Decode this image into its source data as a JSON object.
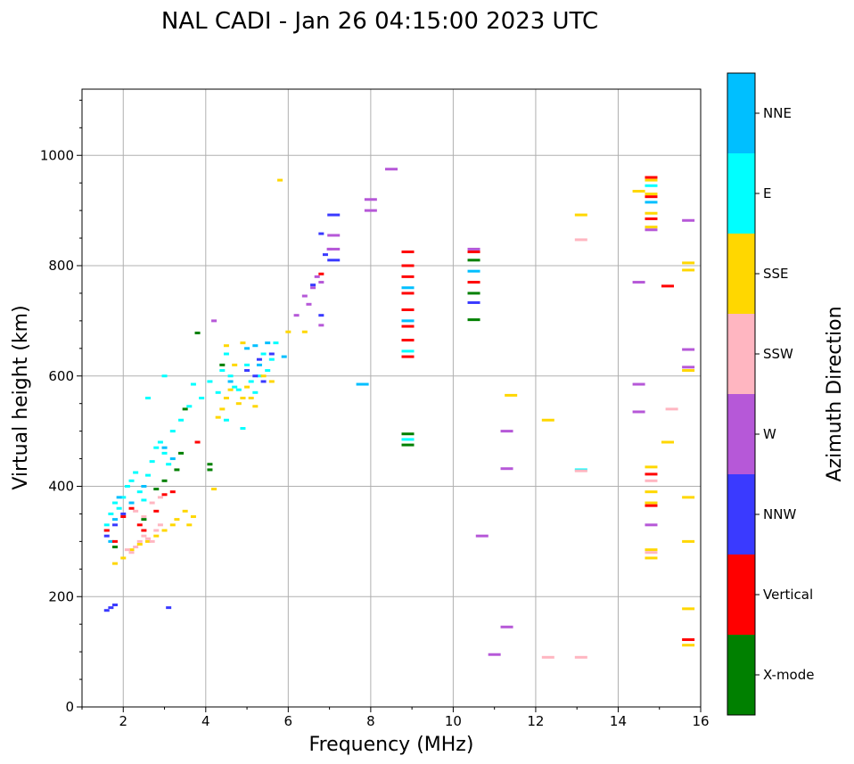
{
  "chart_data": {
    "type": "scatter",
    "title": "NAL CADI - Jan 26 04:15:00 2023 UTC",
    "xlabel": "Frequency (MHz)",
    "ylabel": "Virtual height (km)",
    "xlim": [
      1,
      16
    ],
    "ylim": [
      0,
      1120
    ],
    "xticks": [
      2,
      4,
      6,
      8,
      10,
      12,
      14,
      16
    ],
    "yticks": [
      0,
      200,
      400,
      600,
      800,
      1000
    ],
    "grid": true,
    "colorbar": {
      "label": "Azimuth Direction",
      "position": "right",
      "categories": [
        {
          "name": "X-mode",
          "color": "#008000"
        },
        {
          "name": "Vertical",
          "color": "#ff0000"
        },
        {
          "name": "NNW",
          "color": "#3a3aff"
        },
        {
          "name": "W",
          "color": "#b658d8"
        },
        {
          "name": "SSW",
          "color": "#ffb6c1"
        },
        {
          "name": "SSE",
          "color": "#ffd700"
        },
        {
          "name": "E",
          "color": "#00ffff"
        },
        {
          "name": "NNE",
          "color": "#00bfff"
        }
      ]
    },
    "series": [
      {
        "name": "E",
        "points": [
          [
            1.6,
            330
          ],
          [
            1.7,
            350
          ],
          [
            1.8,
            370
          ],
          [
            1.9,
            360
          ],
          [
            2.0,
            380
          ],
          [
            2.1,
            400
          ],
          [
            2.2,
            410
          ],
          [
            2.3,
            425
          ],
          [
            2.4,
            390
          ],
          [
            2.5,
            375
          ],
          [
            2.6,
            420
          ],
          [
            2.7,
            445
          ],
          [
            2.8,
            470
          ],
          [
            2.9,
            480
          ],
          [
            3.0,
            460
          ],
          [
            3.1,
            440
          ],
          [
            3.2,
            500
          ],
          [
            3.4,
            520
          ],
          [
            3.6,
            545
          ],
          [
            3.7,
            585
          ],
          [
            3.9,
            560
          ],
          [
            4.1,
            590
          ],
          [
            4.3,
            570
          ],
          [
            4.4,
            610
          ],
          [
            4.5,
            640
          ],
          [
            4.6,
            600
          ],
          [
            4.7,
            580
          ],
          [
            4.8,
            575
          ],
          [
            4.9,
            560
          ],
          [
            5.0,
            620
          ],
          [
            5.1,
            590
          ],
          [
            5.2,
            570
          ],
          [
            5.3,
            600
          ],
          [
            5.4,
            640
          ],
          [
            5.5,
            610
          ],
          [
            5.6,
            630
          ],
          [
            5.7,
            660
          ],
          [
            3.0,
            600
          ],
          [
            2.6,
            560
          ],
          [
            8.9,
            645
          ],
          [
            8.9,
            485
          ],
          [
            13.1,
            430
          ],
          [
            14.8,
            945
          ],
          [
            4.5,
            520
          ],
          [
            4.9,
            505
          ]
        ]
      },
      {
        "name": "NNE",
        "points": [
          [
            1.6,
            320
          ],
          [
            1.7,
            300
          ],
          [
            1.8,
            340
          ],
          [
            1.9,
            380
          ],
          [
            2.2,
            370
          ],
          [
            2.5,
            400
          ],
          [
            3.0,
            470
          ],
          [
            3.2,
            450
          ],
          [
            5.0,
            650
          ],
          [
            5.3,
            620
          ],
          [
            5.5,
            660
          ],
          [
            5.9,
            635
          ],
          [
            7.8,
            585
          ],
          [
            8.9,
            760
          ],
          [
            8.9,
            700
          ],
          [
            10.5,
            790
          ],
          [
            14.8,
            915
          ],
          [
            4.6,
            590
          ],
          [
            5.2,
            655
          ]
        ]
      },
      {
        "name": "SSE",
        "points": [
          [
            1.8,
            260
          ],
          [
            2.0,
            270
          ],
          [
            2.2,
            285
          ],
          [
            2.4,
            295
          ],
          [
            2.6,
            300
          ],
          [
            2.8,
            310
          ],
          [
            3.0,
            320
          ],
          [
            3.2,
            330
          ],
          [
            3.3,
            340
          ],
          [
            3.5,
            355
          ],
          [
            3.6,
            330
          ],
          [
            3.7,
            345
          ],
          [
            4.2,
            395
          ],
          [
            4.3,
            525
          ],
          [
            4.4,
            540
          ],
          [
            4.5,
            560
          ],
          [
            4.6,
            575
          ],
          [
            4.8,
            550
          ],
          [
            4.9,
            560
          ],
          [
            5.0,
            580
          ],
          [
            5.1,
            560
          ],
          [
            5.2,
            545
          ],
          [
            5.4,
            600
          ],
          [
            5.6,
            590
          ],
          [
            5.8,
            955
          ],
          [
            6.0,
            680
          ],
          [
            6.4,
            680
          ],
          [
            4.7,
            620
          ],
          [
            4.9,
            660
          ],
          [
            4.5,
            655
          ],
          [
            11.4,
            565
          ],
          [
            12.3,
            520
          ],
          [
            13.1,
            892
          ],
          [
            14.5,
            935
          ],
          [
            14.8,
            955
          ],
          [
            14.8,
            930
          ],
          [
            14.8,
            895
          ],
          [
            14.8,
            870
          ],
          [
            14.8,
            435
          ],
          [
            14.8,
            390
          ],
          [
            14.8,
            370
          ],
          [
            14.8,
            285
          ],
          [
            14.8,
            270
          ],
          [
            15.2,
            480
          ],
          [
            15.7,
            805
          ],
          [
            15.7,
            792
          ],
          [
            15.7,
            610
          ],
          [
            15.7,
            380
          ],
          [
            15.7,
            300
          ],
          [
            15.7,
            178
          ],
          [
            15.7,
            112
          ]
        ]
      },
      {
        "name": "SSW",
        "points": [
          [
            2.1,
            285
          ],
          [
            2.2,
            280
          ],
          [
            2.3,
            290
          ],
          [
            2.4,
            300
          ],
          [
            2.5,
            310
          ],
          [
            2.6,
            305
          ],
          [
            2.7,
            300
          ],
          [
            2.8,
            320
          ],
          [
            2.9,
            330
          ],
          [
            2.3,
            355
          ],
          [
            2.5,
            345
          ],
          [
            2.7,
            370
          ],
          [
            2.9,
            380
          ],
          [
            12.3,
            90
          ],
          [
            13.1,
            90
          ],
          [
            13.1,
            847
          ],
          [
            13.1,
            428
          ],
          [
            14.8,
            410
          ],
          [
            15.3,
            540
          ],
          [
            14.8,
            280
          ]
        ]
      },
      {
        "name": "W",
        "points": [
          [
            4.2,
            700
          ],
          [
            6.2,
            710
          ],
          [
            6.4,
            745
          ],
          [
            6.5,
            730
          ],
          [
            6.6,
            760
          ],
          [
            6.7,
            780
          ],
          [
            6.8,
            770
          ],
          [
            6.8,
            692
          ],
          [
            7.0,
            830
          ],
          [
            7.1,
            855
          ],
          [
            7.1,
            830
          ],
          [
            8.0,
            920
          ],
          [
            8.0,
            900
          ],
          [
            8.5,
            975
          ],
          [
            10.5,
            830
          ],
          [
            10.7,
            310
          ],
          [
            11.0,
            95
          ],
          [
            11.3,
            145
          ],
          [
            11.3,
            500
          ],
          [
            11.3,
            432
          ],
          [
            14.5,
            770
          ],
          [
            14.5,
            585
          ],
          [
            14.5,
            535
          ],
          [
            14.8,
            865
          ],
          [
            14.8,
            330
          ],
          [
            15.7,
            882
          ],
          [
            15.7,
            648
          ],
          [
            15.7,
            616
          ]
        ]
      },
      {
        "name": "NNW",
        "points": [
          [
            1.6,
            175
          ],
          [
            1.7,
            180
          ],
          [
            1.8,
            185
          ],
          [
            1.6,
            310
          ],
          [
            1.8,
            330
          ],
          [
            2.0,
            350
          ],
          [
            3.1,
            180
          ],
          [
            5.0,
            610
          ],
          [
            5.2,
            600
          ],
          [
            5.4,
            590
          ],
          [
            5.3,
            630
          ],
          [
            5.6,
            640
          ],
          [
            6.6,
            765
          ],
          [
            6.8,
            710
          ],
          [
            6.8,
            858
          ],
          [
            6.9,
            820
          ],
          [
            7.1,
            892
          ],
          [
            7.1,
            810
          ],
          [
            10.5,
            733
          ]
        ]
      },
      {
        "name": "Vertical",
        "points": [
          [
            1.6,
            320
          ],
          [
            1.8,
            300
          ],
          [
            2.0,
            345
          ],
          [
            2.2,
            360
          ],
          [
            2.4,
            330
          ],
          [
            2.5,
            320
          ],
          [
            2.8,
            355
          ],
          [
            3.0,
            385
          ],
          [
            3.2,
            390
          ],
          [
            3.8,
            480
          ],
          [
            6.8,
            785
          ],
          [
            8.9,
            825
          ],
          [
            8.9,
            800
          ],
          [
            8.9,
            780
          ],
          [
            8.9,
            750
          ],
          [
            8.9,
            720
          ],
          [
            8.9,
            690
          ],
          [
            8.9,
            665
          ],
          [
            8.9,
            635
          ],
          [
            10.5,
            825
          ],
          [
            10.5,
            770
          ],
          [
            14.8,
            960
          ],
          [
            14.8,
            925
          ],
          [
            14.8,
            885
          ],
          [
            14.8,
            422
          ],
          [
            14.8,
            365
          ],
          [
            15.2,
            763
          ],
          [
            15.7,
            122
          ]
        ]
      },
      {
        "name": "X-mode",
        "points": [
          [
            1.8,
            290
          ],
          [
            2.5,
            340
          ],
          [
            2.8,
            395
          ],
          [
            3.0,
            410
          ],
          [
            3.3,
            430
          ],
          [
            3.4,
            460
          ],
          [
            3.5,
            540
          ],
          [
            3.8,
            678
          ],
          [
            4.1,
            430
          ],
          [
            4.1,
            440
          ],
          [
            4.4,
            620
          ],
          [
            8.9,
            475
          ],
          [
            8.9,
            495
          ],
          [
            10.5,
            810
          ],
          [
            10.5,
            750
          ],
          [
            10.5,
            702
          ]
        ]
      }
    ]
  }
}
